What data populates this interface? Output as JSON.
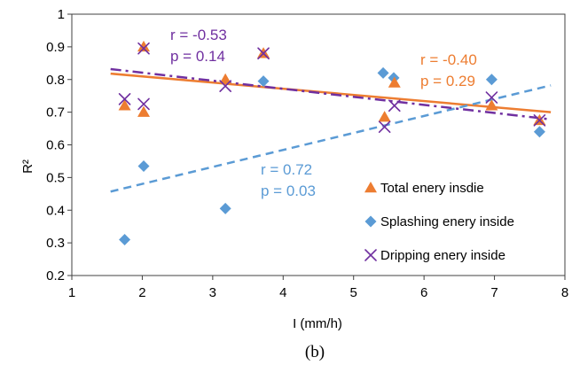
{
  "chart_data": {
    "type": "scatter",
    "title": "",
    "caption": "(b)",
    "xlabel": "I (mm/h)",
    "ylabel": "R²",
    "xlim": [
      1,
      8
    ],
    "ylim": [
      0.2,
      1
    ],
    "xticks": [
      1,
      2,
      3,
      4,
      5,
      6,
      7,
      8
    ],
    "yticks": [
      0.2,
      0.3,
      0.4,
      0.5,
      0.6,
      0.7,
      0.8,
      0.9,
      1
    ],
    "ytick_labels": [
      "0.2",
      "0.3",
      "0.4",
      "0.5",
      "0.6",
      "0.7",
      "0.8",
      "0.9",
      "1"
    ],
    "grid": false,
    "legend_position": "right",
    "colors": {
      "total": "#ED7D31",
      "splashing": "#5B9BD5",
      "dripping": "#7030A0"
    },
    "series": [
      {
        "name": "Total enery insdie",
        "marker": "triangle",
        "color": "#ED7D31",
        "points": [
          [
            1.75,
            0.72
          ],
          [
            2.02,
            0.7
          ],
          [
            2.02,
            0.9
          ],
          [
            3.18,
            0.8
          ],
          [
            3.72,
            0.88
          ],
          [
            5.44,
            0.685
          ],
          [
            5.58,
            0.79
          ],
          [
            6.96,
            0.72
          ],
          [
            7.64,
            0.675
          ]
        ],
        "trend": {
          "style": "solid",
          "x": [
            1.55,
            7.8
          ],
          "y": [
            0.818,
            0.7
          ]
        },
        "annotation": {
          "lines": [
            "r = -0.40",
            "p = 0.29"
          ]
        }
      },
      {
        "name": "Splashing enery inside",
        "marker": "diamond",
        "color": "#5B9BD5",
        "points": [
          [
            1.75,
            0.31
          ],
          [
            2.02,
            0.535
          ],
          [
            3.18,
            0.405
          ],
          [
            3.72,
            0.795
          ],
          [
            5.42,
            0.82
          ],
          [
            5.57,
            0.805
          ],
          [
            6.96,
            0.8
          ],
          [
            7.64,
            0.64
          ]
        ],
        "trend": {
          "style": "dashed",
          "x": [
            1.55,
            7.8
          ],
          "y": [
            0.457,
            0.782
          ]
        },
        "annotation": {
          "lines": [
            "r = 0.72",
            "p = 0.03"
          ]
        }
      },
      {
        "name": "Dripping enery inside",
        "marker": "x",
        "color": "#7030A0",
        "points": [
          [
            1.75,
            0.74
          ],
          [
            2.02,
            0.725
          ],
          [
            2.02,
            0.895
          ],
          [
            3.18,
            0.78
          ],
          [
            3.72,
            0.88
          ],
          [
            5.44,
            0.655
          ],
          [
            5.58,
            0.72
          ],
          [
            6.96,
            0.745
          ],
          [
            7.64,
            0.675
          ]
        ],
        "trend": {
          "style": "dashdot",
          "x": [
            1.55,
            7.8
          ],
          "y": [
            0.832,
            0.678
          ]
        },
        "annotation": {
          "lines": [
            "r = -0.53",
            "p = 0.14"
          ]
        }
      }
    ]
  }
}
